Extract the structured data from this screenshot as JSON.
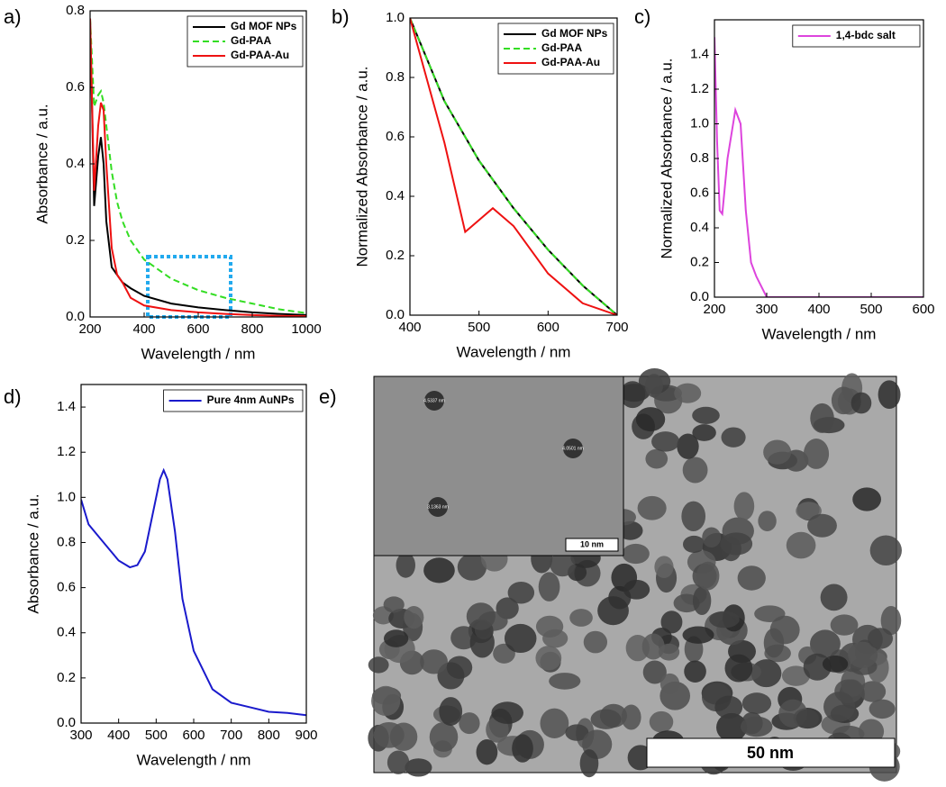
{
  "panels": [
    "a)",
    "b)",
    "c)",
    "d)",
    "e)"
  ],
  "chart_data": [
    {
      "type": "line",
      "xlabel": "Wavelength / nm",
      "ylabel": "Absorbance / a.u.",
      "xlim": [
        200,
        1000
      ],
      "ylim": [
        0,
        0.8
      ],
      "xticks": [
        200,
        400,
        600,
        800,
        1000
      ],
      "yticks": [
        {
          "value": 0,
          "label": "0.0"
        },
        {
          "value": 0.2,
          "label": "0.2"
        },
        {
          "value": 0.4,
          "label": "0.4"
        },
        {
          "value": 0.6,
          "label": "0.6"
        },
        {
          "value": 0.8,
          "label": "0.8"
        }
      ],
      "legend": "upper right",
      "series": [
        {
          "name": "Gd MOF NPs",
          "color": "#000000",
          "style": "solid",
          "x": [
            200,
            215,
            230,
            240,
            250,
            260,
            280,
            300,
            320,
            350,
            400,
            500,
            600,
            700,
            800,
            900,
            1000
          ],
          "values": [
            0.78,
            0.29,
            0.42,
            0.47,
            0.4,
            0.25,
            0.13,
            0.11,
            0.09,
            0.075,
            0.055,
            0.035,
            0.025,
            0.018,
            0.012,
            0.008,
            0.005
          ]
        },
        {
          "name": "Gd-PAA",
          "color": "#33dd22",
          "style": "dashed",
          "x": [
            200,
            215,
            230,
            240,
            250,
            260,
            280,
            300,
            320,
            350,
            400,
            500,
            600,
            700,
            800,
            900,
            1000
          ],
          "values": [
            0.78,
            0.55,
            0.58,
            0.59,
            0.56,
            0.5,
            0.38,
            0.3,
            0.25,
            0.2,
            0.15,
            0.1,
            0.07,
            0.05,
            0.035,
            0.02,
            0.01
          ]
        },
        {
          "name": "Gd-PAA-Au",
          "color": "#ee1111",
          "style": "solid",
          "x": [
            200,
            215,
            230,
            240,
            250,
            260,
            280,
            300,
            320,
            350,
            400,
            500,
            600,
            700,
            800,
            900,
            1000
          ],
          "values": [
            0.78,
            0.33,
            0.5,
            0.56,
            0.54,
            0.4,
            0.18,
            0.11,
            0.09,
            0.05,
            0.03,
            0.018,
            0.012,
            0.008,
            0.005,
            0.003,
            0.002
          ]
        }
      ]
    },
    {
      "type": "line",
      "xlabel": "Wavelength / nm",
      "ylabel": "Normalized Absorbance / a.u.",
      "xlim": [
        400,
        700
      ],
      "ylim": [
        0,
        1
      ],
      "xticks": [
        400,
        500,
        600,
        700
      ],
      "yticks": [
        {
          "value": 0,
          "label": "0.0"
        },
        {
          "value": 0.2,
          "label": "0.2"
        },
        {
          "value": 0.4,
          "label": "0.4"
        },
        {
          "value": 0.6,
          "label": "0.6"
        },
        {
          "value": 0.8,
          "label": "0.8"
        },
        {
          "value": 1,
          "label": "1.0"
        }
      ],
      "legend": "upper right",
      "series": [
        {
          "name": "Gd MOF NPs",
          "color": "#000000",
          "style": "solid",
          "x": [
            400,
            450,
            500,
            550,
            600,
            650,
            700
          ],
          "values": [
            1.0,
            0.72,
            0.52,
            0.36,
            0.22,
            0.1,
            0.0
          ]
        },
        {
          "name": "Gd-PAA",
          "color": "#33dd22",
          "style": "dashed",
          "x": [
            400,
            450,
            500,
            550,
            600,
            650,
            700
          ],
          "values": [
            1.0,
            0.72,
            0.52,
            0.36,
            0.22,
            0.1,
            0.0
          ]
        },
        {
          "name": "Gd-PAA-Au",
          "color": "#ee1111",
          "style": "solid",
          "x": [
            400,
            450,
            480,
            490,
            520,
            550,
            600,
            650,
            700
          ],
          "values": [
            1.0,
            0.58,
            0.28,
            0.3,
            0.36,
            0.3,
            0.14,
            0.04,
            0.0
          ]
        }
      ]
    },
    {
      "type": "line",
      "xlabel": "Wavelength / nm",
      "ylabel": "Normalized Absorbance / a.u.",
      "xlim": [
        200,
        600
      ],
      "ylim": [
        0,
        1.6
      ],
      "xticks": [
        200,
        300,
        400,
        500,
        600
      ],
      "yticks": [
        {
          "value": 0,
          "label": "0.0"
        },
        {
          "value": 0.2,
          "label": "0.2"
        },
        {
          "value": 0.4,
          "label": "0.4"
        },
        {
          "value": 0.6,
          "label": "0.6"
        },
        {
          "value": 0.8,
          "label": "0.8"
        },
        {
          "value": 1,
          "label": "1.0"
        },
        {
          "value": 1.2,
          "label": "1.2"
        },
        {
          "value": 1.4,
          "label": "1.4"
        }
      ],
      "legend": "upper right",
      "series": [
        {
          "name": "1,4-bdc salt",
          "color": "#dd44dd",
          "style": "solid",
          "x": [
            200,
            205,
            210,
            215,
            225,
            240,
            250,
            260,
            270,
            280,
            300,
            350,
            400,
            500,
            600
          ],
          "values": [
            1.5,
            0.9,
            0.5,
            0.48,
            0.8,
            1.08,
            1.0,
            0.5,
            0.2,
            0.12,
            0.0,
            0,
            0,
            0,
            0
          ]
        }
      ]
    },
    {
      "type": "line",
      "xlabel": "Wavelength / nm",
      "ylabel": "Absorbance / a.u.",
      "xlim": [
        300,
        900
      ],
      "ylim": [
        0,
        1.5
      ],
      "xticks": [
        300,
        400,
        500,
        600,
        700,
        800,
        900
      ],
      "yticks": [
        {
          "value": 0,
          "label": "0.0"
        },
        {
          "value": 0.2,
          "label": "0.2"
        },
        {
          "value": 0.4,
          "label": "0.4"
        },
        {
          "value": 0.6,
          "label": "0.6"
        },
        {
          "value": 0.8,
          "label": "0.8"
        },
        {
          "value": 1,
          "label": "1.0"
        },
        {
          "value": 1.2,
          "label": "1.2"
        },
        {
          "value": 1.4,
          "label": "1.4"
        }
      ],
      "legend": "upper right",
      "series": [
        {
          "name": "Pure 4nm AuNPs",
          "color": "#1a1acc",
          "style": "solid",
          "x": [
            300,
            320,
            350,
            380,
            400,
            430,
            450,
            470,
            490,
            510,
            520,
            530,
            550,
            570,
            600,
            650,
            700,
            750,
            800,
            850,
            900
          ],
          "values": [
            0.99,
            0.88,
            0.82,
            0.76,
            0.72,
            0.69,
            0.7,
            0.76,
            0.92,
            1.08,
            1.12,
            1.08,
            0.85,
            0.55,
            0.32,
            0.15,
            0.09,
            0.07,
            0.05,
            0.045,
            0.035
          ]
        }
      ]
    }
  ],
  "image": {
    "scale_bar": "50 nm",
    "inset_scale_bar": "10 nm",
    "inset_labels": [
      "4.5337 nm",
      "4.0501 nm",
      "3.1363 nm"
    ]
  }
}
